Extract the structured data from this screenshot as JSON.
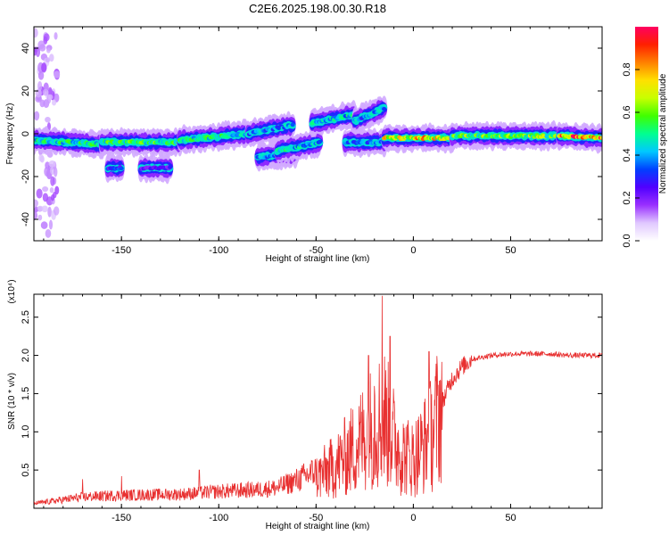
{
  "title": "C2E6.2025.198.00.30.R18",
  "chart_data": [
    {
      "type": "heatmap",
      "name": "spectrogram",
      "xlabel": "Height of straight line (km)",
      "ylabel": "Frequency (Hz)",
      "xlim": [
        -195,
        97
      ],
      "ylim": [
        -50,
        50
      ],
      "xticks": [
        -150,
        -100,
        -50,
        0,
        50
      ],
      "yticks": [
        -40,
        -20,
        0,
        20,
        40
      ],
      "colorbar": {
        "label": "Normalized spectral amplitude",
        "range": [
          0,
          1
        ],
        "ticks": [
          "0.0",
          "0.2",
          "0.4",
          "0.6",
          "0.8"
        ],
        "colors": [
          "#ffffff",
          "#e0c8ff",
          "#9a30ff",
          "#5000ff",
          "#0040ff",
          "#00c8ff",
          "#00ff90",
          "#40ff00",
          "#c8ff00",
          "#ffe000",
          "#ff8000",
          "#ff2000",
          "#ff0060"
        ]
      },
      "segments": [
        {
          "x0": -195,
          "x1": -160,
          "y0": -3,
          "y1": -5,
          "amp": 0.5
        },
        {
          "x0": -160,
          "x1": -120,
          "y0": -4,
          "y1": -4,
          "amp": 0.55
        },
        {
          "x0": -120,
          "x1": -85,
          "y0": -3,
          "y1": 0,
          "amp": 0.5
        },
        {
          "x0": -85,
          "x1": -62,
          "y0": 0,
          "y1": 4,
          "amp": 0.4
        },
        {
          "x0": -80,
          "x1": -60,
          "y0": -11,
          "y1": -9,
          "amp": 0.4
        },
        {
          "x0": -70,
          "x1": -48,
          "y0": -8,
          "y1": -4,
          "amp": 0.45
        },
        {
          "x0": -52,
          "x1": -30,
          "y0": 5,
          "y1": 9,
          "amp": 0.45
        },
        {
          "x0": -30,
          "x1": -15,
          "y0": 6,
          "y1": 12,
          "amp": 0.4
        },
        {
          "x0": -35,
          "x1": -15,
          "y0": -4,
          "y1": -4,
          "amp": 0.4
        },
        {
          "x0": -15,
          "x1": 20,
          "y0": -2,
          "y1": -2,
          "amp": 0.75
        },
        {
          "x0": 20,
          "x1": 75,
          "y0": -1,
          "y1": -1,
          "amp": 0.6
        },
        {
          "x0": 75,
          "x1": 97,
          "y0": -1,
          "y1": -2,
          "amp": 0.85
        },
        {
          "x0": -157,
          "x1": -150,
          "y0": -16,
          "y1": -16,
          "amp": 0.3
        },
        {
          "x0": -140,
          "x1": -125,
          "y0": -16,
          "y1": -16,
          "amp": 0.25
        }
      ]
    },
    {
      "type": "line",
      "name": "snr",
      "xlabel": "Height of straight line (km)",
      "ylabel": "SNR (10 * v/v)",
      "yscale_label": "(x10⁴)",
      "xlim": [
        -195,
        97
      ],
      "ylim": [
        0,
        2.8
      ],
      "xticks": [
        -150,
        -100,
        -50,
        0,
        50
      ],
      "yticks": [
        "0.5",
        "1.0",
        "1.5",
        "2.0",
        "2.5"
      ],
      "color": "#e83030",
      "envelope": {
        "x": [
          -195,
          -170,
          -150,
          -120,
          -100,
          -80,
          -70,
          -60,
          -50,
          -40,
          -30,
          -20,
          -15,
          -10,
          -5,
          0,
          5,
          10,
          15,
          20,
          25,
          30,
          40,
          50,
          60,
          70,
          80,
          90,
          97
        ],
        "y": [
          0.05,
          0.12,
          0.14,
          0.15,
          0.18,
          0.2,
          0.22,
          0.3,
          0.4,
          0.55,
          0.8,
          1.1,
          1.2,
          0.9,
          0.7,
          0.65,
          0.8,
          1.0,
          1.4,
          1.7,
          1.85,
          1.95,
          2.0,
          2.02,
          2.02,
          2.02,
          2.0,
          2.0,
          2.0
        ]
      },
      "spikes": [
        {
          "x": -170,
          "y": 0.38
        },
        {
          "x": -150,
          "y": 0.42
        },
        {
          "x": -110,
          "y": 0.5
        },
        {
          "x": -23,
          "y": 2.0
        },
        {
          "x": -16,
          "y": 2.78
        },
        {
          "x": -12,
          "y": 2.25
        },
        {
          "x": -20,
          "y": 1.6
        },
        {
          "x": 8,
          "y": 2.05
        }
      ]
    }
  ]
}
